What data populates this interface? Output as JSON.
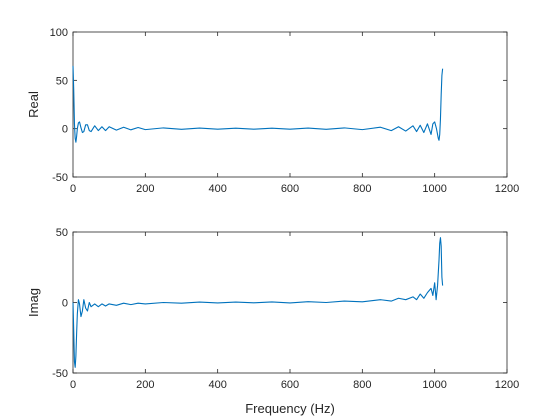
{
  "chart_data": [
    {
      "type": "line",
      "ylabel": "Real",
      "xlabel": "",
      "xlim": [
        0,
        1200
      ],
      "ylim": [
        -50,
        100
      ],
      "xticks": [
        0,
        200,
        400,
        600,
        800,
        1000,
        1200
      ],
      "xtick_labels": [
        "0",
        "200",
        "400",
        "600",
        "800",
        "1000",
        "1200"
      ],
      "yticks": [
        -50,
        0,
        50,
        100
      ],
      "ytick_labels": [
        "-50",
        "0",
        "50",
        "100"
      ],
      "grid": false,
      "color": "#0072BD",
      "series": [
        {
          "x": [
            0,
            2,
            4,
            6,
            8,
            10,
            12,
            15,
            18,
            22,
            26,
            30,
            35,
            40,
            45,
            50,
            60,
            70,
            80,
            90,
            100,
            120,
            140,
            160,
            180,
            200,
            250,
            300,
            350,
            400,
            450,
            500,
            550,
            600,
            650,
            700,
            750,
            800,
            850,
            880,
            900,
            920,
            940,
            950,
            960,
            970,
            980,
            990,
            995,
            1000,
            1005,
            1010,
            1012,
            1014,
            1016,
            1018,
            1020,
            1022
          ],
          "y": [
            65,
            40,
            5,
            -10,
            -14,
            -8,
            0,
            6,
            7,
            1,
            -4,
            -3,
            4,
            4,
            -2,
            -3,
            3,
            -2,
            2,
            -2,
            2,
            -1.5,
            1.5,
            -1.2,
            1.2,
            -1,
            0.8,
            -0.7,
            0.6,
            -0.5,
            0.5,
            -0.5,
            0.5,
            -0.5,
            0.6,
            -0.7,
            0.8,
            -1,
            1.5,
            -2,
            2,
            -2.5,
            3,
            -3,
            3.5,
            -4,
            5,
            -6,
            5,
            7,
            0,
            -10,
            -12,
            -6,
            10,
            35,
            55,
            62
          ]
        }
      ]
    },
    {
      "type": "line",
      "ylabel": "Imag",
      "xlabel": "Frequency (Hz)",
      "xlim": [
        0,
        1200
      ],
      "ylim": [
        -50,
        50
      ],
      "xticks": [
        0,
        200,
        400,
        600,
        800,
        1000,
        1200
      ],
      "xtick_labels": [
        "0",
        "200",
        "400",
        "600",
        "800",
        "1000",
        "1200"
      ],
      "yticks": [
        -50,
        0,
        50
      ],
      "ytick_labels": [
        "-50",
        "0",
        "50"
      ],
      "grid": false,
      "color": "#0072BD",
      "series": [
        {
          "x": [
            0,
            2,
            4,
            6,
            8,
            10,
            12,
            15,
            18,
            22,
            26,
            30,
            35,
            40,
            45,
            50,
            60,
            70,
            80,
            90,
            100,
            120,
            140,
            160,
            180,
            200,
            250,
            300,
            350,
            400,
            450,
            500,
            550,
            600,
            650,
            700,
            750,
            800,
            850,
            880,
            900,
            920,
            940,
            950,
            960,
            970,
            980,
            990,
            995,
            1000,
            1004,
            1008,
            1012,
            1014,
            1016,
            1018,
            1020,
            1022
          ],
          "y": [
            0,
            -20,
            -42,
            -46,
            -38,
            -22,
            -8,
            2,
            -1,
            -10,
            -6,
            2,
            -4,
            -6,
            0,
            -3,
            -1,
            -3,
            -1,
            -2.5,
            -1,
            -2,
            -0.5,
            -1.5,
            -0.5,
            -1,
            0,
            -0.5,
            0.3,
            -0.3,
            0.3,
            -0.2,
            0.4,
            -0.3,
            0.6,
            0,
            1,
            0.5,
            2,
            1,
            3,
            2,
            4,
            2,
            6,
            3,
            7,
            10,
            5,
            14,
            2,
            12,
            30,
            42,
            46,
            40,
            18,
            12
          ]
        }
      ]
    }
  ]
}
